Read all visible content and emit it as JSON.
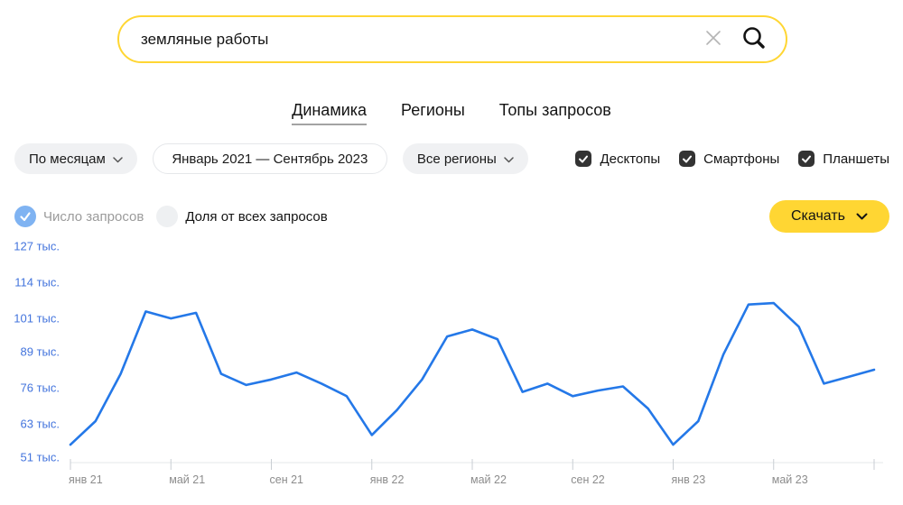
{
  "search": {
    "query": "земляные работы",
    "clear_icon_name": "clear",
    "search_icon_name": "search"
  },
  "tabs": [
    {
      "label": "Динамика",
      "active": true
    },
    {
      "label": "Регионы",
      "active": false
    },
    {
      "label": "Топы запросов",
      "active": false
    }
  ],
  "filters": {
    "period": "По месяцам",
    "date_range": "Январь 2021 — Сентябрь 2023",
    "region": "Все регионы",
    "devices": [
      {
        "label": "Десктопы",
        "checked": true
      },
      {
        "label": "Смартфоны",
        "checked": true
      },
      {
        "label": "Планшеты",
        "checked": true
      }
    ]
  },
  "metrics": [
    {
      "label": "Число запросов",
      "selected": true
    },
    {
      "label": "Доля от всех запросов",
      "selected": false
    }
  ],
  "download": {
    "label": "Скачать"
  },
  "colors": {
    "accent_yellow": "#ffd633",
    "line_blue": "#2478e8",
    "y_label_blue": "#4374dd",
    "x_label_gray": "#8c8c8c",
    "axis_gray": "#e4e7ea",
    "tick_gray": "#c9ced3",
    "radio_selected_blue": "#7fb3f2"
  },
  "chart_data": {
    "type": "line",
    "title": "",
    "xlabel": "",
    "ylabel": "",
    "unit": "тыс.",
    "grid": false,
    "legend_position": "none",
    "x": [
      "янв 21",
      "фев 21",
      "мар 21",
      "апр 21",
      "май 21",
      "июн 21",
      "июл 21",
      "авг 21",
      "сен 21",
      "окт 21",
      "ноя 21",
      "дек 21",
      "янв 22",
      "фев 22",
      "мар 22",
      "апр 22",
      "май 22",
      "июн 22",
      "июл 22",
      "авг 22",
      "сен 22",
      "окт 22",
      "ноя 22",
      "дек 22",
      "янв 23",
      "фев 23",
      "мар 23",
      "апр 23",
      "май 23",
      "июн 23",
      "июл 23",
      "авг 23",
      "сен 23"
    ],
    "series": [
      {
        "name": "Число запросов",
        "values_thousands": [
          55.5,
          64,
          81,
          103.5,
          101,
          103,
          81,
          77,
          79,
          81.5,
          77.5,
          73,
          59,
          68,
          79,
          94.5,
          97,
          93.5,
          74.5,
          77.5,
          73,
          75,
          76.5,
          68.5,
          55.5,
          64,
          88,
          106,
          106.5,
          98,
          77.5,
          80,
          82.5
        ]
      }
    ],
    "x_tick_every": 4,
    "x_tick_labels": [
      "янв 21",
      "май 21",
      "сен 21",
      "янв 22",
      "май 22",
      "сен 22",
      "янв 23",
      "май 23"
    ],
    "y_ticks": [
      127,
      114,
      101,
      89,
      76,
      63,
      51
    ],
    "y_tick_suffix": " тыс.",
    "ylim": [
      51,
      127
    ]
  }
}
